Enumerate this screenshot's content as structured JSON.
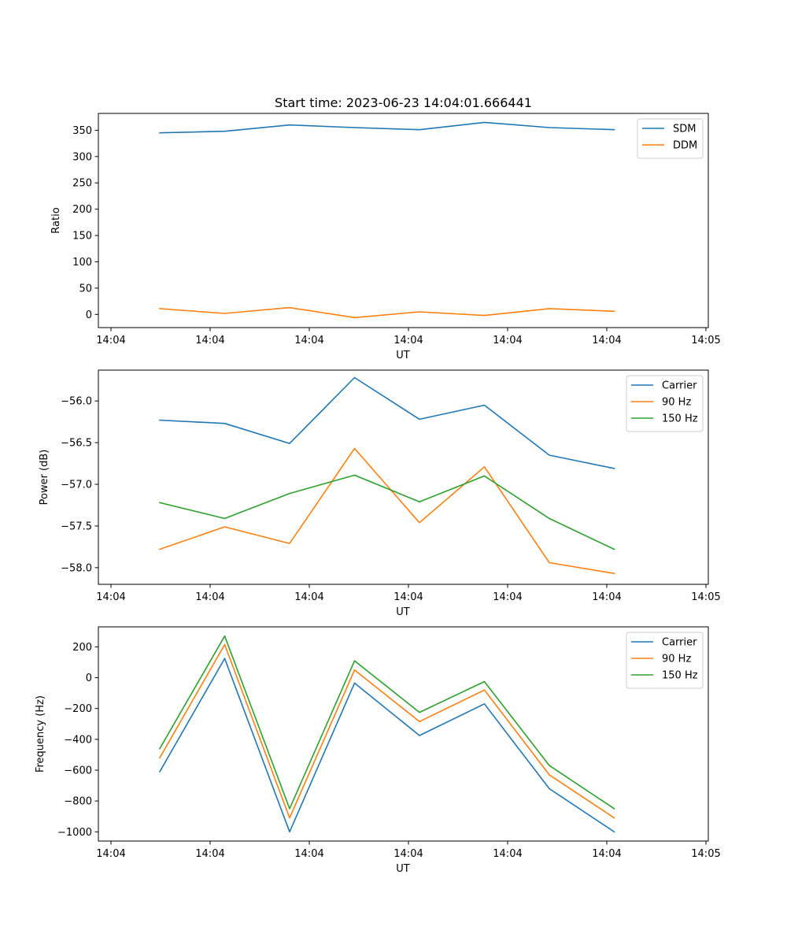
{
  "chart_data": [
    {
      "type": "line",
      "title": "Start time: 2023-06-23 14:04:01.666441",
      "xlabel": "UT",
      "ylabel": "Ratio",
      "x_tick_labels": [
        "14:04",
        "14:04",
        "14:04",
        "14:04",
        "14:04",
        "14:04",
        "14:05"
      ],
      "y_ticks": [
        0,
        50,
        100,
        150,
        200,
        250,
        300,
        350
      ],
      "ylim": [
        -25,
        382
      ],
      "legend_position": "top-right",
      "series": [
        {
          "name": "SDM",
          "color": "#1f77b4",
          "values": [
            345,
            348,
            360,
            355,
            351,
            365,
            355,
            351
          ]
        },
        {
          "name": "DDM",
          "color": "#ff7f0e",
          "values": [
            11,
            2,
            13,
            -6,
            5,
            -2,
            11,
            6
          ]
        }
      ]
    },
    {
      "type": "line",
      "title": "",
      "xlabel": "UT",
      "ylabel": "Power (dB)",
      "x_tick_labels": [
        "14:04",
        "14:04",
        "14:04",
        "14:04",
        "14:04",
        "14:04",
        "14:05"
      ],
      "y_ticks": [
        -56.0,
        -56.5,
        -57.0,
        -57.5,
        -58.0
      ],
      "ylim": [
        -58.2,
        -55.63
      ],
      "legend_position": "top-right",
      "series": [
        {
          "name": "Carrier",
          "color": "#1f77b4",
          "values": [
            -56.23,
            -56.27,
            -56.51,
            -55.72,
            -56.22,
            -56.05,
            -56.65,
            -56.81
          ]
        },
        {
          "name": "90 Hz",
          "color": "#ff7f0e",
          "values": [
            -57.78,
            -57.51,
            -57.71,
            -56.57,
            -57.46,
            -56.79,
            -57.94,
            -58.07
          ]
        },
        {
          "name": "150 Hz",
          "color": "#2ca02c",
          "values": [
            -57.22,
            -57.41,
            -57.11,
            -56.89,
            -57.21,
            -56.9,
            -57.41,
            -57.78
          ]
        }
      ]
    },
    {
      "type": "line",
      "title": "",
      "xlabel": "UT",
      "ylabel": "Frequency (Hz)",
      "x_tick_labels": [
        "14:04",
        "14:04",
        "14:04",
        "14:04",
        "14:04",
        "14:04",
        "14:05"
      ],
      "y_ticks": [
        200,
        0,
        -200,
        -400,
        -600,
        -800,
        -1000
      ],
      "ylim": [
        -1060,
        330
      ],
      "legend_position": "top-right",
      "series": [
        {
          "name": "Carrier",
          "color": "#1f77b4",
          "values": [
            -610,
            125,
            -1000,
            -35,
            -375,
            -170,
            -720,
            -1000
          ]
        },
        {
          "name": "90 Hz",
          "color": "#ff7f0e",
          "values": [
            -520,
            215,
            -910,
            50,
            -285,
            -80,
            -630,
            -910
          ]
        },
        {
          "name": "150 Hz",
          "color": "#2ca02c",
          "values": [
            -460,
            270,
            -850,
            110,
            -225,
            -25,
            -570,
            -850
          ]
        }
      ]
    }
  ]
}
